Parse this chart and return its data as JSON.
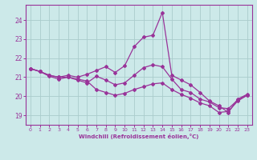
{
  "xlabel": "Windchill (Refroidissement éolien,°C)",
  "background_color": "#cce9e9",
  "grid_color": "#aacccc",
  "line_color": "#993399",
  "spine_color": "#993399",
  "xlim": [
    -0.5,
    23.5
  ],
  "ylim": [
    18.5,
    24.8
  ],
  "yticks": [
    19,
    20,
    21,
    22,
    23,
    24
  ],
  "xticks": [
    0,
    1,
    2,
    3,
    4,
    5,
    6,
    7,
    8,
    9,
    10,
    11,
    12,
    13,
    14,
    15,
    16,
    17,
    18,
    19,
    20,
    21,
    22,
    23
  ],
  "series1_x": [
    0,
    1,
    2,
    3,
    4,
    5,
    6,
    7,
    8,
    9,
    10,
    11,
    12,
    13,
    14,
    15,
    16,
    17,
    18,
    19,
    20,
    21,
    22,
    23
  ],
  "series1_y": [
    21.45,
    21.3,
    21.1,
    21.0,
    21.1,
    21.0,
    21.15,
    21.35,
    21.55,
    21.25,
    21.6,
    22.6,
    23.1,
    23.2,
    24.4,
    21.1,
    20.85,
    20.6,
    20.2,
    19.75,
    19.5,
    19.15,
    19.85,
    20.1
  ],
  "series2_x": [
    0,
    1,
    2,
    3,
    4,
    5,
    6,
    7,
    8,
    9,
    10,
    11,
    12,
    13,
    14,
    15,
    16,
    17,
    18,
    19,
    20,
    21,
    22,
    23
  ],
  "series2_y": [
    21.45,
    21.3,
    21.05,
    20.9,
    21.0,
    20.85,
    20.7,
    21.05,
    20.85,
    20.6,
    20.7,
    21.1,
    21.5,
    21.65,
    21.55,
    20.9,
    20.35,
    20.2,
    19.85,
    19.7,
    19.4,
    19.35,
    19.8,
    20.05
  ],
  "series3_x": [
    0,
    1,
    2,
    3,
    4,
    5,
    6,
    7,
    8,
    9,
    10,
    11,
    12,
    13,
    14,
    15,
    16,
    17,
    18,
    19,
    20,
    21,
    22,
    23
  ],
  "series3_y": [
    21.45,
    21.3,
    21.1,
    21.0,
    21.0,
    20.9,
    20.8,
    20.35,
    20.2,
    20.05,
    20.15,
    20.35,
    20.5,
    20.65,
    20.7,
    20.35,
    20.1,
    19.9,
    19.65,
    19.5,
    19.15,
    19.2,
    19.75,
    20.05
  ]
}
